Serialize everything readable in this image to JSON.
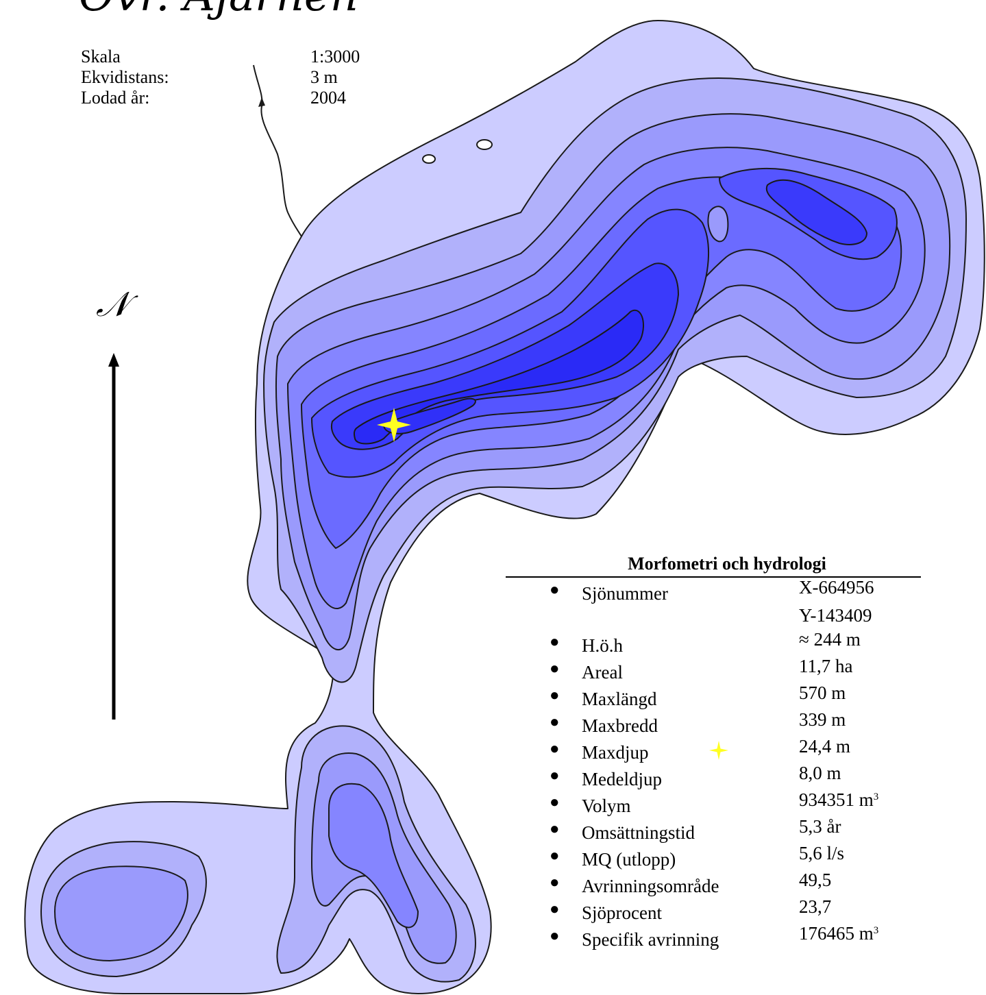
{
  "map": {
    "title": "Övr. Ajärnen",
    "north_label": "𝒩",
    "colors": {
      "shore": "#ccccff",
      "level1": "#b1b1fb",
      "level2": "#9a9afc",
      "level3": "#8585ff",
      "level4": "#6b6bff",
      "level5": "#5555ff",
      "level6": "#3a3afb",
      "deepest": "#2a2af6",
      "outline": "#1a1a1a",
      "max_depth_marker": "#ffff22"
    },
    "icons": [
      "north-arrow-icon",
      "max-depth-star-icon",
      "inflow-arrow-icon",
      "island-icon"
    ]
  },
  "info": {
    "rows": [
      {
        "label": "Skala",
        "value": "1:3000"
      },
      {
        "label": "Ekvidistans:",
        "value": "3 m"
      },
      {
        "label": "Lodad år:",
        "value": "2004"
      }
    ]
  },
  "panel": {
    "title": "Morfometri och hydrologi",
    "rows": [
      {
        "label": "Sjönummer",
        "value": "X-664956"
      },
      {
        "label": "",
        "value": "Y-143409"
      },
      {
        "label": "H.ö.h",
        "value": "≈ 244 m"
      },
      {
        "label": "Areal",
        "value": "11,7 ha"
      },
      {
        "label": "Maxlängd",
        "value": "570 m"
      },
      {
        "label": "Maxbredd",
        "value": "339 m"
      },
      {
        "label": "Maxdjup",
        "value": "24,4 m"
      },
      {
        "label": "Medeldjup",
        "value": "8,0 m"
      },
      {
        "label": "Volym",
        "value": "934351 m",
        "sup": "3"
      },
      {
        "label": "Omsättningstid",
        "value": "5,3 år"
      },
      {
        "label": "MQ (utlopp)",
        "value": "5,6 l/s"
      },
      {
        "label": "Avrinningsområde",
        "value": "49,5"
      },
      {
        "label": "Sjöprocent",
        "value": "23,7"
      },
      {
        "label": "Specifik avrinning",
        "value": "176465 m",
        "sup": "3"
      }
    ]
  }
}
